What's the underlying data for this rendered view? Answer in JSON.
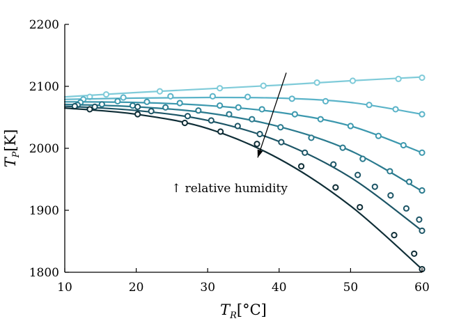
{
  "chart_data": {
    "type": "line",
    "xlabel": {
      "symbol": "T",
      "subscript": "R",
      "unit": "[°C]"
    },
    "ylabel": {
      "symbol": "T",
      "subscript": "P",
      "unit": "[K]"
    },
    "xlim": [
      10,
      60
    ],
    "ylim": [
      1800,
      2200
    ],
    "xticks": [
      10,
      20,
      30,
      40,
      50,
      60
    ],
    "yticks": [
      1800,
      1900,
      2000,
      2100,
      2200
    ],
    "grid": false,
    "annotation": {
      "text": "↑ relative humidity",
      "arrow_from": [
        41,
        2122
      ],
      "arrow_to": [
        37,
        1985
      ]
    },
    "series": [
      {
        "color": "#7fcbd9",
        "curve": [
          [
            10,
            2083
          ],
          [
            20,
            2090
          ],
          [
            30,
            2096
          ],
          [
            40,
            2102
          ],
          [
            50,
            2109
          ],
          [
            60,
            2115
          ]
        ],
        "markers": [
          [
            13.5,
            2083
          ],
          [
            15.8,
            2087
          ],
          [
            23.3,
            2092
          ],
          [
            31.7,
            2097
          ],
          [
            37.8,
            2101
          ],
          [
            45.3,
            2106
          ],
          [
            50.3,
            2109
          ],
          [
            56.7,
            2112
          ],
          [
            60,
            2114
          ]
        ]
      },
      {
        "color": "#5ab3c8",
        "curve": [
          [
            10,
            2079
          ],
          [
            20,
            2081
          ],
          [
            30,
            2082
          ],
          [
            40,
            2081
          ],
          [
            50,
            2074
          ],
          [
            60,
            2055
          ]
        ],
        "markers": [
          [
            12.6,
            2079
          ],
          [
            18.2,
            2082
          ],
          [
            24.8,
            2084
          ],
          [
            30.7,
            2084
          ],
          [
            35.6,
            2083
          ],
          [
            41.8,
            2080
          ],
          [
            46.5,
            2076
          ],
          [
            52.6,
            2070
          ],
          [
            56.3,
            2063
          ],
          [
            60,
            2055
          ]
        ]
      },
      {
        "color": "#3c98ae",
        "curve": [
          [
            10,
            2075
          ],
          [
            20,
            2074
          ],
          [
            30,
            2069
          ],
          [
            40,
            2058
          ],
          [
            50,
            2036
          ],
          [
            60,
            1993
          ]
        ],
        "markers": [
          [
            12.2,
            2074
          ],
          [
            17.4,
            2076
          ],
          [
            21.5,
            2075
          ],
          [
            26.1,
            2073
          ],
          [
            31.7,
            2069
          ],
          [
            34.3,
            2066
          ],
          [
            37.6,
            2063
          ],
          [
            42.2,
            2055
          ],
          [
            45.8,
            2047
          ],
          [
            50,
            2036
          ],
          [
            53.9,
            2020
          ],
          [
            57.4,
            2005
          ],
          [
            60,
            1993
          ]
        ]
      },
      {
        "color": "#2a7a8e",
        "curve": [
          [
            10,
            2071
          ],
          [
            20,
            2067
          ],
          [
            30,
            2057
          ],
          [
            40,
            2035
          ],
          [
            50,
            1996
          ],
          [
            60,
            1931
          ]
        ],
        "markers": [
          [
            11.8,
            2070
          ],
          [
            15.2,
            2071
          ],
          [
            19.5,
            2069
          ],
          [
            24.1,
            2066
          ],
          [
            28.7,
            2061
          ],
          [
            33,
            2055
          ],
          [
            36.2,
            2047
          ],
          [
            40.2,
            2034
          ],
          [
            44.5,
            2017
          ],
          [
            48.9,
            2001
          ],
          [
            51.7,
            1983
          ],
          [
            55.5,
            1963
          ],
          [
            58.2,
            1946
          ],
          [
            60,
            1932
          ]
        ]
      },
      {
        "color": "#1c5566",
        "curve": [
          [
            10,
            2068
          ],
          [
            20,
            2061
          ],
          [
            30,
            2045
          ],
          [
            40,
            2011
          ],
          [
            50,
            1953
          ],
          [
            60,
            1867
          ]
        ],
        "markers": [
          [
            11.4,
            2068
          ],
          [
            14.2,
            2067
          ],
          [
            20.2,
            2067
          ],
          [
            22.1,
            2060
          ],
          [
            27.2,
            2052
          ],
          [
            30.5,
            2045
          ],
          [
            34.2,
            2036
          ],
          [
            37.3,
            2023
          ],
          [
            40.3,
            2010
          ],
          [
            43.6,
            1993
          ],
          [
            47.6,
            1974
          ],
          [
            51,
            1957
          ],
          [
            53.4,
            1938
          ],
          [
            55.6,
            1924
          ],
          [
            57.8,
            1903
          ],
          [
            59.6,
            1885
          ],
          [
            60,
            1867
          ]
        ]
      },
      {
        "color": "#0e2d36",
        "curve": [
          [
            10,
            2065
          ],
          [
            20,
            2055
          ],
          [
            30,
            2032
          ],
          [
            40,
            1983
          ],
          [
            50,
            1907
          ],
          [
            60,
            1805
          ]
        ],
        "markers": [
          [
            13.5,
            2063
          ],
          [
            20.2,
            2055
          ],
          [
            26.8,
            2041
          ],
          [
            31.8,
            2027
          ],
          [
            36.9,
            2007
          ],
          [
            43.1,
            1971
          ],
          [
            47.9,
            1937
          ],
          [
            51.3,
            1905
          ],
          [
            56.1,
            1860
          ],
          [
            58.9,
            1830
          ],
          [
            60,
            1805
          ]
        ]
      }
    ]
  }
}
